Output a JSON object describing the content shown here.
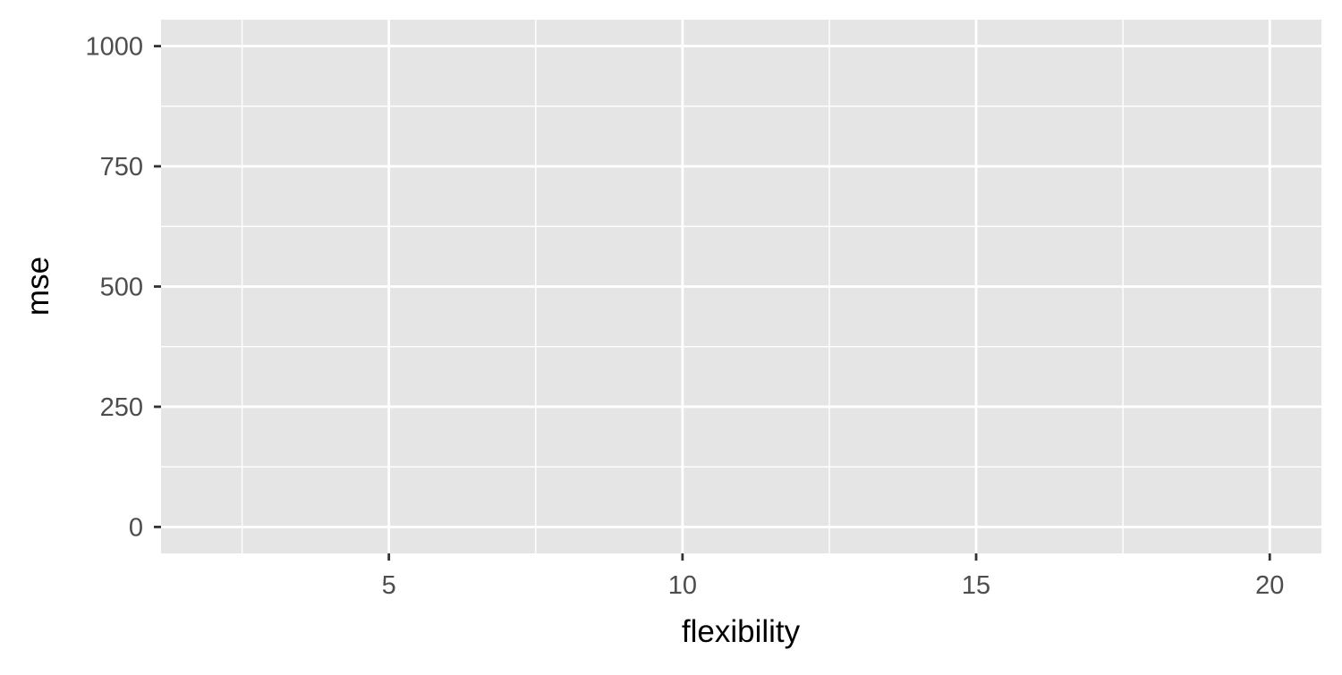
{
  "chart_data": {
    "type": "line",
    "title": "",
    "xlabel": "flexibility",
    "ylabel": "mse",
    "xlim": [
      1.12,
      20.88
    ],
    "ylim": [
      -55,
      1055
    ],
    "x_ticks": [
      5,
      10,
      15,
      20
    ],
    "x_tick_labels": [
      "5",
      "10",
      "15",
      "20"
    ],
    "x_minor_ticks": [
      2.5,
      7.5,
      12.5,
      17.5
    ],
    "y_ticks": [
      0,
      250,
      500,
      750,
      1000
    ],
    "y_tick_labels": [
      "0",
      "250",
      "500",
      "750",
      "1000"
    ],
    "y_minor_ticks": [
      125,
      375,
      625,
      875
    ],
    "series": [],
    "grid": true,
    "legend": "none",
    "colors": {
      "panel_background": "#e5e5e5",
      "grid_line": "#ffffff",
      "tick_label": "#4d4d4d",
      "axis_tick": "#333333",
      "axis_title": "#000000"
    }
  }
}
